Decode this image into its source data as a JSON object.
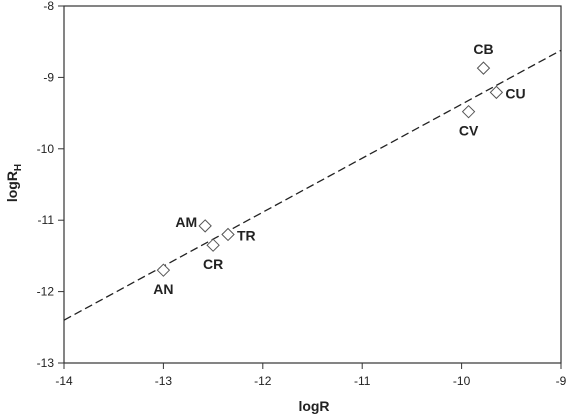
{
  "chart_data": {
    "type": "scatter",
    "title": "",
    "xlabel": "logR",
    "ylabel": {
      "base": "logR",
      "subscript": "H"
    },
    "xlim": [
      -14,
      -9
    ],
    "ylim": [
      -13,
      -8
    ],
    "xticks": [
      -14,
      -13,
      -12,
      -11,
      -10,
      -9
    ],
    "yticks": [
      -13,
      -12,
      -11,
      -10,
      -9,
      -8
    ],
    "xtick_labels": [
      "-14",
      "-13",
      "-12",
      "-11",
      "-10",
      "-9"
    ],
    "ytick_labels": [
      "-13",
      "-12",
      "-11",
      "-10",
      "-9",
      "-8"
    ],
    "grid": false,
    "legend": "none",
    "marker": "open diamond",
    "points": [
      {
        "label": "AN",
        "x": -13.0,
        "y": -11.7,
        "label_pos": "below"
      },
      {
        "label": "CR",
        "x": -12.5,
        "y": -11.35,
        "label_pos": "below"
      },
      {
        "label": "AM",
        "x": -12.58,
        "y": -11.08,
        "label_pos": "left"
      },
      {
        "label": "TR",
        "x": -12.35,
        "y": -11.2,
        "label_pos": "right"
      },
      {
        "label": "CV",
        "x": -9.93,
        "y": -9.48,
        "label_pos": "below"
      },
      {
        "label": "CB",
        "x": -9.78,
        "y": -8.87,
        "label_pos": "above"
      },
      {
        "label": "CU",
        "x": -9.65,
        "y": -9.21,
        "label_pos": "right"
      }
    ],
    "fit_line": {
      "style": "dashed",
      "x": [
        -14,
        -9
      ],
      "y": [
        -12.4,
        -8.62
      ]
    }
  }
}
